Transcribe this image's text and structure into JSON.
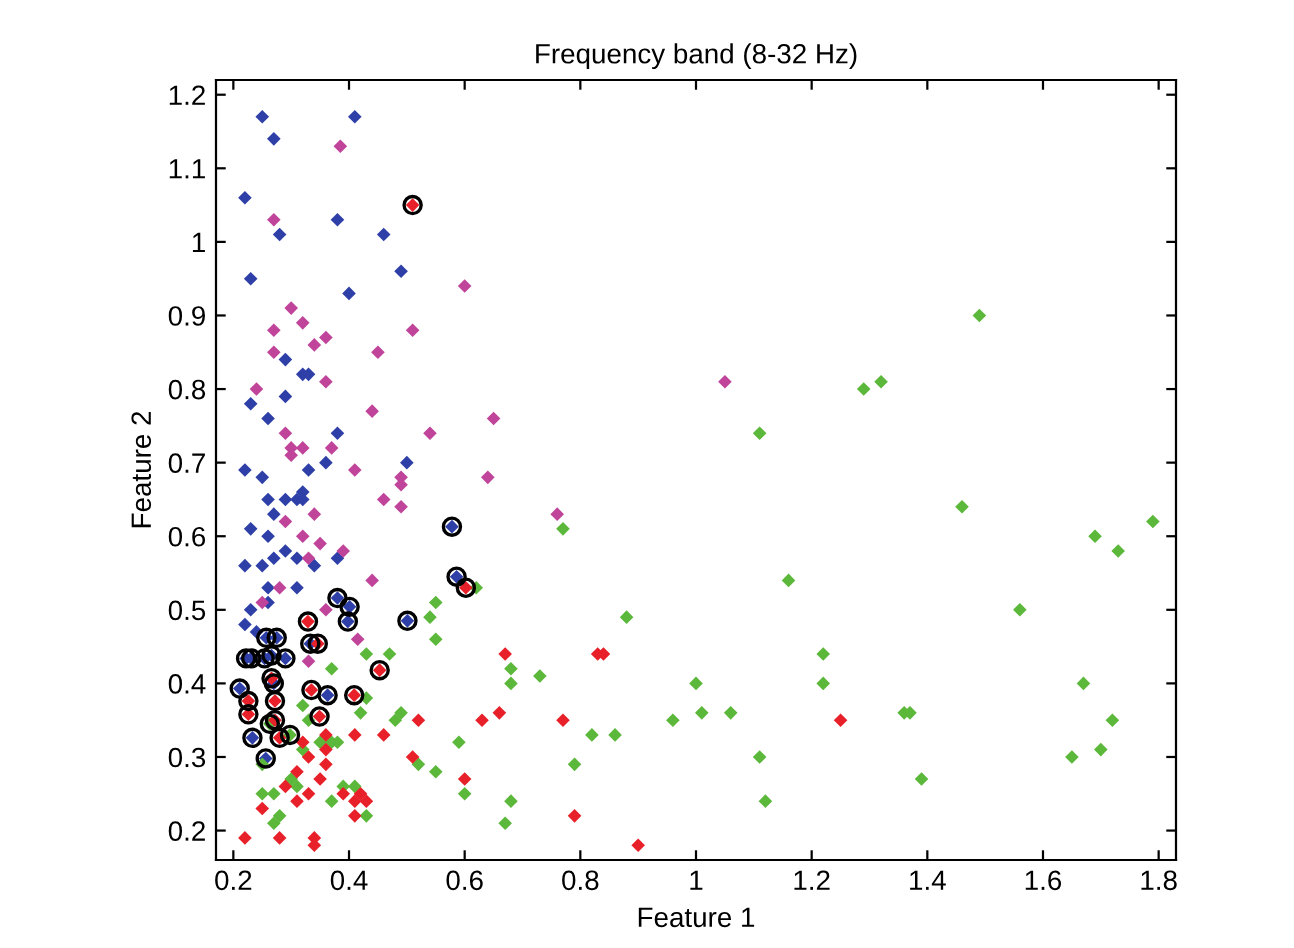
{
  "chart_data": {
    "type": "scatter",
    "title": "Frequency band (8-32 Hz)",
    "xlabel": "Feature 1",
    "ylabel": "Feature 2",
    "xlim": [
      0.17,
      1.83
    ],
    "ylim": [
      0.16,
      1.22
    ],
    "xticks": [
      0.2,
      0.4,
      0.6,
      0.8,
      1,
      1.2,
      1.4,
      1.6,
      1.8
    ],
    "yticks": [
      0.2,
      0.3,
      0.4,
      0.5,
      0.6,
      0.7,
      0.8,
      0.9,
      1,
      1.1,
      1.2
    ],
    "grid": false,
    "legend": false,
    "series": [
      {
        "color": "#2e3fa8",
        "marker": "diamond",
        "x": [
          0.25,
          0.41,
          0.27,
          0.22,
          0.38,
          0.28,
          0.46,
          0.23,
          0.49,
          0.4,
          0.29,
          0.32,
          0.33,
          0.23,
          0.29,
          0.26,
          0.38,
          0.22,
          0.25,
          0.26,
          0.29,
          0.31,
          0.32,
          0.32,
          0.33,
          0.36,
          0.5,
          0.27,
          0.23,
          0.26,
          0.29,
          0.25,
          0.22,
          0.27,
          0.31,
          0.34,
          0.38,
          0.31,
          0.26,
          0.23,
          0.26,
          0.22,
          0.24,
          0.222,
          0.231,
          0.257,
          0.275,
          0.254,
          0.266,
          0.29,
          0.211,
          0.233,
          0.256,
          0.27,
          0.333,
          0.38,
          0.401,
          0.398,
          0.363,
          0.501,
          0.578,
          0.586
        ],
        "values": [
          1.17,
          1.17,
          1.14,
          1.06,
          1.03,
          1.01,
          1.01,
          0.95,
          0.96,
          0.93,
          0.84,
          0.82,
          0.82,
          0.78,
          0.79,
          0.76,
          0.74,
          0.69,
          0.68,
          0.65,
          0.65,
          0.65,
          0.66,
          0.65,
          0.69,
          0.7,
          0.7,
          0.63,
          0.61,
          0.6,
          0.58,
          0.56,
          0.56,
          0.57,
          0.57,
          0.56,
          0.57,
          0.53,
          0.53,
          0.5,
          0.51,
          0.48,
          0.47,
          0.434,
          0.434,
          0.462,
          0.462,
          0.434,
          0.438,
          0.434,
          0.393,
          0.326,
          0.298,
          0.4,
          0.454,
          0.516,
          0.504,
          0.484,
          0.384,
          0.485,
          0.613,
          0.545
        ]
      },
      {
        "color": "#c0449a",
        "marker": "diamond",
        "x": [
          0.385,
          0.27,
          0.6,
          0.3,
          0.32,
          0.27,
          0.51,
          0.36,
          0.34,
          0.27,
          0.45,
          0.36,
          0.24,
          0.44,
          0.54,
          0.65,
          0.29,
          0.3,
          0.3,
          0.32,
          0.37,
          0.41,
          0.49,
          0.49,
          0.49,
          0.46,
          0.64,
          0.34,
          0.29,
          0.32,
          0.35,
          0.39,
          0.33,
          0.28,
          0.25,
          0.44,
          0.36,
          0.415,
          0.33,
          0.76,
          1.05
        ],
        "values": [
          1.13,
          1.03,
          0.94,
          0.91,
          0.89,
          0.88,
          0.88,
          0.87,
          0.86,
          0.85,
          0.85,
          0.81,
          0.8,
          0.77,
          0.74,
          0.76,
          0.74,
          0.72,
          0.71,
          0.72,
          0.72,
          0.69,
          0.68,
          0.67,
          0.64,
          0.65,
          0.68,
          0.63,
          0.62,
          0.6,
          0.59,
          0.58,
          0.57,
          0.53,
          0.51,
          0.54,
          0.5,
          0.46,
          0.43,
          0.63,
          0.81
        ]
      },
      {
        "color": "#5cb83a",
        "marker": "diamond",
        "x": [
          0.77,
          0.55,
          0.54,
          0.55,
          0.62,
          0.47,
          0.43,
          0.37,
          0.68,
          0.68,
          0.73,
          0.43,
          0.42,
          0.49,
          0.48,
          0.59,
          0.38,
          0.37,
          0.32,
          0.33,
          0.55,
          0.52,
          0.79,
          0.82,
          0.6,
          0.68,
          0.67,
          0.41,
          0.43,
          0.27,
          0.28,
          0.3,
          0.31,
          0.25,
          0.27,
          0.25,
          0.37,
          0.39,
          0.35,
          0.32,
          0.298,
          0.263,
          1.11,
          1.29,
          1.32,
          1.49,
          1.46,
          1.79,
          1.69,
          1.73,
          1.16,
          1.56,
          0.88,
          1.22,
          1.22,
          1.0,
          1.01,
          0.96,
          1.06,
          0.86,
          1.11,
          1.12,
          1.36,
          1.37,
          1.39,
          1.67,
          1.65,
          1.7,
          1.72
        ],
        "values": [
          0.61,
          0.51,
          0.49,
          0.46,
          0.53,
          0.44,
          0.44,
          0.42,
          0.42,
          0.4,
          0.41,
          0.38,
          0.36,
          0.36,
          0.35,
          0.32,
          0.32,
          0.32,
          0.37,
          0.35,
          0.28,
          0.29,
          0.29,
          0.33,
          0.25,
          0.24,
          0.21,
          0.26,
          0.22,
          0.21,
          0.22,
          0.27,
          0.26,
          0.25,
          0.25,
          0.29,
          0.24,
          0.26,
          0.32,
          0.31,
          0.33,
          0.345,
          0.74,
          0.8,
          0.81,
          0.9,
          0.64,
          0.62,
          0.6,
          0.58,
          0.54,
          0.5,
          0.49,
          0.44,
          0.4,
          0.4,
          0.36,
          0.35,
          0.36,
          0.33,
          0.3,
          0.24,
          0.36,
          0.36,
          0.27,
          0.4,
          0.3,
          0.31,
          0.35
        ]
      },
      {
        "color": "#e8202a",
        "marker": "diamond",
        "x": [
          0.22,
          0.25,
          0.28,
          0.34,
          0.34,
          0.31,
          0.29,
          0.32,
          0.33,
          0.36,
          0.36,
          0.35,
          0.39,
          0.41,
          0.42,
          0.43,
          0.41,
          0.41,
          0.46,
          0.51,
          0.52,
          0.6,
          0.63,
          0.66,
          0.67,
          0.79,
          0.77,
          0.83,
          0.36,
          0.31,
          0.33,
          0.84,
          1.25,
          0.9,
          0.51,
          0.266,
          0.226,
          0.226,
          0.272,
          0.272,
          0.28,
          0.329,
          0.346,
          0.335,
          0.349,
          0.409,
          0.453,
          0.602
        ],
        "values": [
          0.19,
          0.23,
          0.19,
          0.19,
          0.18,
          0.24,
          0.26,
          0.32,
          0.3,
          0.31,
          0.29,
          0.27,
          0.25,
          0.24,
          0.25,
          0.24,
          0.22,
          0.33,
          0.33,
          0.3,
          0.35,
          0.27,
          0.35,
          0.36,
          0.44,
          0.22,
          0.35,
          0.44,
          0.33,
          0.28,
          0.25,
          0.44,
          0.35,
          0.18,
          1.05,
          0.407,
          0.376,
          0.358,
          0.376,
          0.35,
          0.326,
          0.484,
          0.454,
          0.391,
          0.355,
          0.384,
          0.418,
          0.53
        ]
      },
      {
        "color": "#000000",
        "marker": "circle",
        "x": [
          0.222,
          0.231,
          0.257,
          0.275,
          0.254,
          0.266,
          0.29,
          0.211,
          0.233,
          0.256,
          0.27,
          0.333,
          0.38,
          0.401,
          0.398,
          0.363,
          0.501,
          0.578,
          0.586,
          0.51,
          0.266,
          0.226,
          0.226,
          0.272,
          0.272,
          0.28,
          0.329,
          0.346,
          0.335,
          0.349,
          0.409,
          0.453,
          0.602,
          0.298,
          0.263
        ],
        "values": [
          0.434,
          0.434,
          0.462,
          0.462,
          0.434,
          0.438,
          0.434,
          0.393,
          0.326,
          0.298,
          0.4,
          0.454,
          0.516,
          0.504,
          0.484,
          0.384,
          0.485,
          0.613,
          0.545,
          1.05,
          0.407,
          0.376,
          0.358,
          0.376,
          0.35,
          0.326,
          0.484,
          0.454,
          0.391,
          0.355,
          0.384,
          0.418,
          0.53,
          0.33,
          0.345
        ]
      }
    ]
  }
}
